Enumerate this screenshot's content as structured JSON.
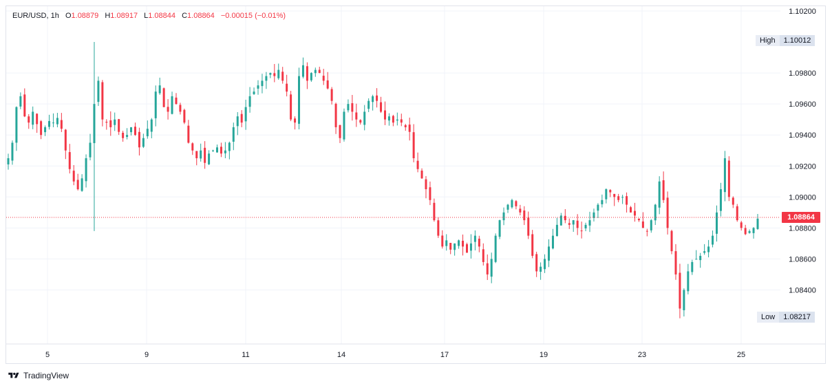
{
  "legend": {
    "symbol": "EUR/USD",
    "interval": "1h",
    "open_key": "O",
    "open": "1.08879",
    "high_key": "H",
    "high": "1.08917",
    "low_key": "L",
    "low": "1.08844",
    "close_key": "C",
    "close": "1.08864",
    "change": "−0.00015 (−0.01%)"
  },
  "badges": {
    "high_label": "High",
    "high_value": "1.10012",
    "low_label": "Low",
    "low_value": "1.08217",
    "last_price": "1.08864"
  },
  "brand": "TradingView",
  "colors": {
    "up": "#26a69a",
    "down": "#f23645",
    "grid": "#f0f3fa",
    "text": "#131722"
  },
  "chart_data": {
    "type": "candlestick",
    "symbol": "EUR/USD",
    "interval": "1h",
    "x_tick_labels": [
      "5",
      "9",
      "11",
      "14",
      "17",
      "19",
      "23",
      "25"
    ],
    "y_tick_labels": [
      "1.10200",
      "1.09800",
      "1.09600",
      "1.09400",
      "1.09200",
      "1.09000",
      "1.08800",
      "1.08600",
      "1.08400"
    ],
    "ylim": [
      1.0814,
      1.1022
    ],
    "last_price": 1.08864,
    "period_high": 1.10012,
    "period_low": 1.08217,
    "grid": true,
    "path_close": [
      1.0925,
      1.0935,
      1.0958,
      1.0965,
      1.0952,
      1.0948,
      1.0955,
      1.0947,
      1.094,
      1.0945,
      1.0949,
      1.0948,
      1.0951,
      1.0944,
      1.093,
      1.0918,
      1.091,
      1.0905,
      1.0912,
      1.0925,
      1.0935,
      1.096,
      1.0975,
      1.095,
      1.0948,
      1.0945,
      1.095,
      1.0942,
      1.0938,
      1.094,
      1.0945,
      1.094,
      1.0932,
      1.0938,
      1.0944,
      1.095,
      1.0968,
      1.0972,
      1.0958,
      1.0955,
      1.0965,
      1.096,
      1.0955,
      1.0948,
      1.0935,
      1.093,
      1.0925,
      1.093,
      1.0922,
      1.0928,
      1.093,
      1.0932,
      1.0928,
      1.093,
      1.0935,
      1.0945,
      1.0952,
      1.0948,
      1.0958,
      1.0965,
      1.0968,
      1.0972,
      1.0975,
      1.0978,
      1.098,
      1.0978,
      1.0982,
      1.0975,
      1.0968,
      1.095,
      1.0948,
      1.0978,
      1.0985,
      1.0975,
      1.098,
      1.0982,
      1.098,
      1.0975,
      1.097,
      1.0962,
      1.0945,
      1.0938,
      1.0955,
      1.096,
      1.0955,
      1.095,
      1.0948,
      1.0955,
      1.0962,
      1.0965,
      1.0962,
      1.0955,
      1.095,
      1.0952,
      1.0948,
      1.095,
      1.0948,
      1.0945,
      1.0942,
      1.0925,
      1.0918,
      1.0912,
      1.0905,
      1.0898,
      1.0885,
      1.0875,
      1.0868,
      1.0872,
      1.0866,
      1.087,
      1.0872,
      1.0868,
      1.0864,
      1.087,
      1.0875,
      1.0868,
      1.0858,
      1.085,
      1.086,
      1.0875,
      1.0885,
      1.089,
      1.0895,
      1.0898,
      1.0894,
      1.089,
      1.0885,
      1.0875,
      1.0862,
      1.0852,
      1.0855,
      1.086,
      1.0868,
      1.0875,
      1.0882,
      1.0888,
      1.0885,
      1.0882,
      1.0885,
      1.088,
      1.0878,
      1.0882,
      1.0885,
      1.089,
      1.0895,
      1.0898,
      1.0905,
      1.0903,
      1.09,
      1.0898,
      1.09,
      1.0895,
      1.089,
      1.0888,
      1.0885,
      1.088,
      1.0878,
      1.0885,
      1.0895,
      1.091,
      1.0898,
      1.088,
      1.0865,
      1.085,
      1.0828,
      1.084,
      1.0852,
      1.0858,
      1.086,
      1.0862,
      1.0865,
      1.0868,
      1.0875,
      1.089,
      1.0905,
      1.0925,
      1.09,
      1.0895,
      1.0885,
      1.088,
      1.0876,
      1.0878,
      1.088,
      1.0886
    ]
  }
}
